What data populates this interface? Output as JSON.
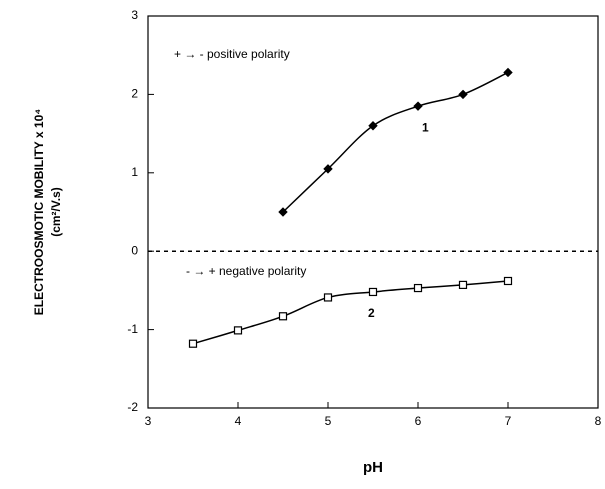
{
  "chart_data": {
    "type": "line",
    "x_label": "pH",
    "y_label": "ELECTROOSMOTIC MOBILITY x 10⁴",
    "y_label_units": "(cm²/V.s)",
    "xlim": [
      3,
      8
    ],
    "xticks": [
      3,
      4,
      5,
      6,
      7,
      8
    ],
    "ylim": [
      -2,
      3
    ],
    "yticks": [
      -2,
      -1,
      0,
      1,
      2,
      3
    ],
    "zero_line": true,
    "series": [
      {
        "name": "1",
        "color": "#000000",
        "marker": "diamond",
        "x": [
          4.5,
          5,
          5.5,
          6,
          6.5,
          7
        ],
        "values": [
          0.5,
          1.05,
          1.6,
          1.85,
          2.0,
          2.28
        ]
      },
      {
        "name": "2",
        "color": "#000000",
        "marker": "square",
        "x": [
          3.5,
          4,
          4.5,
          5,
          5.5,
          6,
          6.5,
          7
        ],
        "values": [
          -1.18,
          -1.01,
          -0.83,
          -0.59,
          -0.52,
          -0.47,
          -0.43,
          -0.38
        ]
      }
    ],
    "annotations": [
      "+ → - positive polarity",
      "- → + negative polarity"
    ]
  }
}
